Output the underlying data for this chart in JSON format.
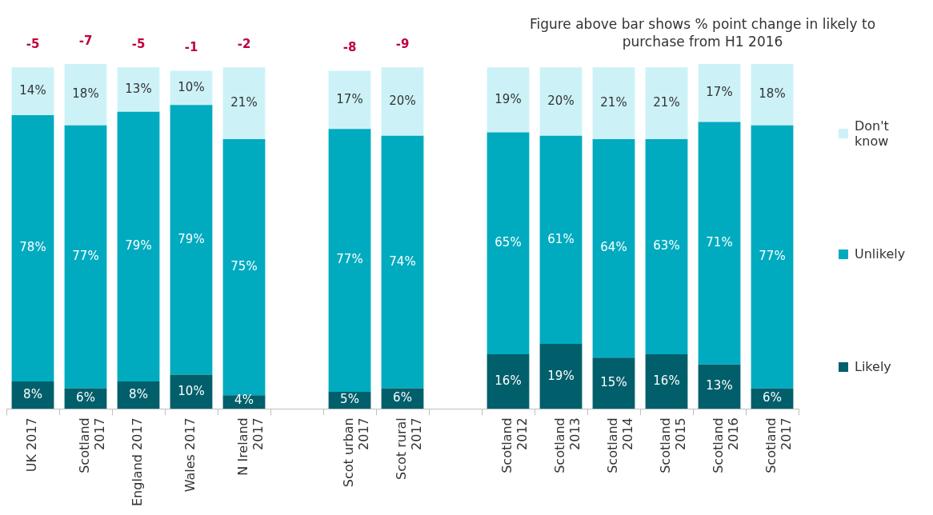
{
  "chart_data": {
    "type": "bar",
    "stacked": true,
    "categories": [
      "UK 2017",
      "Scotland 2017",
      "England 2017",
      "Wales 2017",
      "N Ireland 2017",
      null,
      "Scot urban 2017",
      "Scot rural 2017",
      null,
      "Scotland 2012",
      "Scotland 2013",
      "Scotland 2014",
      "Scotland 2015",
      "Scotland 2016",
      "Scotland 2017"
    ],
    "series": [
      {
        "name": "Likely",
        "color": "#005f6b",
        "values": [
          8,
          6,
          8,
          10,
          4,
          null,
          5,
          6,
          null,
          16,
          19,
          15,
          16,
          13,
          6
        ],
        "value_labels": [
          "8%",
          "6%",
          "8%",
          "10%",
          "4%",
          null,
          "5%",
          "6%",
          null,
          "16%",
          "19%",
          "15%",
          "16%",
          "13%",
          "6%"
        ]
      },
      {
        "name": "Unlikely",
        "color": "#00abbf",
        "values": [
          78,
          77,
          79,
          79,
          75,
          null,
          77,
          74,
          null,
          65,
          61,
          64,
          63,
          71,
          77
        ],
        "value_labels": [
          "78%",
          "77%",
          "79%",
          "79%",
          "75%",
          null,
          "77%",
          "74%",
          null,
          "65%",
          "61%",
          "64%",
          "63%",
          "71%",
          "77%"
        ]
      },
      {
        "name": "Don't know",
        "color": "#ccf2f7",
        "values": [
          14,
          18,
          13,
          10,
          21,
          null,
          17,
          20,
          null,
          19,
          20,
          21,
          21,
          17,
          18
        ],
        "value_labels": [
          "14%",
          "18%",
          "13%",
          "10%",
          "21%",
          null,
          "17%",
          "20%",
          null,
          "19%",
          "20%",
          "21%",
          "21%",
          "17%",
          "18%"
        ]
      }
    ],
    "ylim": [
      0,
      101
    ],
    "tick_labels": "x",
    "grid": false,
    "legend": "right",
    "annotations": [
      "Figure above bar shows % point change in likely to purchase from H1 2016",
      {
        "text": "-5",
        "x": "UK 2017",
        "y": 100
      },
      {
        "text": "-7",
        "x": "Scotland 2017",
        "y": 101
      },
      {
        "text": "-5",
        "x": "England 2017",
        "y": 100
      },
      {
        "text": "-1",
        "x": "Wales 2017",
        "y": 99
      },
      {
        "text": "-2",
        "x": "N Ireland 2017",
        "y": 100
      },
      {
        "text": "-8",
        "x": "Scot urban 2017",
        "y": 99
      },
      {
        "text": "-9",
        "x": "Scot rural 2017",
        "y": 100
      }
    ]
  }
}
